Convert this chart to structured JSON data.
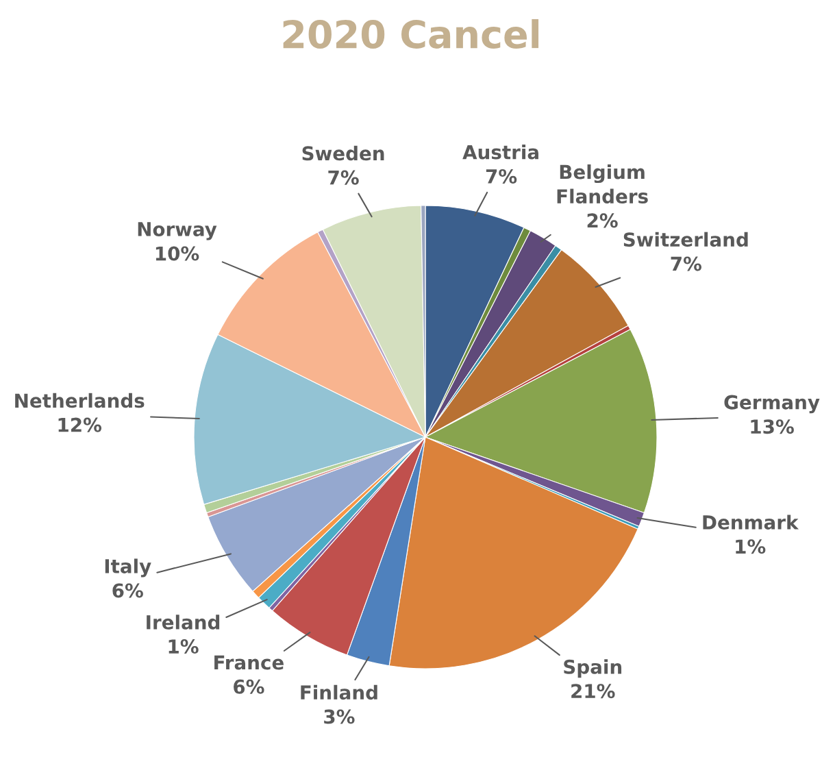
{
  "chart_data": {
    "type": "pie",
    "title": "2020 Cancel",
    "categories": [
      "Austria",
      null,
      "Belgium Flanders",
      null,
      "Switzerland",
      null,
      "Germany",
      "Denmark",
      null,
      "Spain",
      "Finland",
      "France",
      null,
      "Ireland",
      null,
      "Italy",
      null,
      null,
      "Netherlands",
      "Norway",
      null,
      "Sweden",
      null
    ],
    "values": [
      7,
      0.5,
      2,
      0.5,
      7,
      0.3,
      13,
      1,
      0.2,
      21,
      3,
      6,
      0.3,
      1,
      0.6,
      6,
      0.3,
      0.6,
      12,
      10,
      0.4,
      7,
      0.3
    ],
    "value_labels": [
      "7%",
      null,
      "2%",
      null,
      "7%",
      null,
      "13%",
      "1%",
      null,
      "21%",
      "3%",
      "6%",
      null,
      "1%",
      null,
      "6%",
      null,
      null,
      "12%",
      "10%",
      null,
      "7%",
      null
    ],
    "colors": [
      "#3b5f8d",
      "#6e8b3d",
      "#5f4a7a",
      "#3a8ea5",
      "#b87133",
      "#b5423f",
      "#88a44e",
      "#6f568f",
      "#3c9bb8",
      "#db823b",
      "#4f81bd",
      "#c0504d",
      "#8064a2",
      "#4bacc6",
      "#f79646",
      "#95a8cf",
      "#d99694",
      "#b3cf99",
      "#93c3d4",
      "#f8b48f",
      "#b3a2c7",
      "#d4dfbf",
      "#9aa5c0"
    ]
  }
}
